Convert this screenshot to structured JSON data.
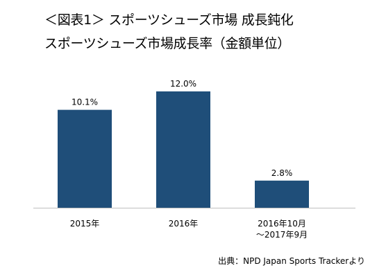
{
  "title": "＜図表1＞ スポーツシューズ市場 成長鈍化",
  "subtitle": "スポーツシューズ市場成長率（金額単位）",
  "source": "出典：NPD Japan Sports Trackerより",
  "chart_data": {
    "type": "bar",
    "categories": [
      "2015年",
      "2016年",
      "2016年10月\n～2017年9月"
    ],
    "values": [
      10.1,
      12.0,
      2.8
    ],
    "data_labels": [
      "10.1%",
      "12.0%",
      "2.8%"
    ],
    "unit": "%",
    "ylim": [
      0,
      12.0
    ],
    "grid": false,
    "bar_color": "#1f4e79"
  }
}
